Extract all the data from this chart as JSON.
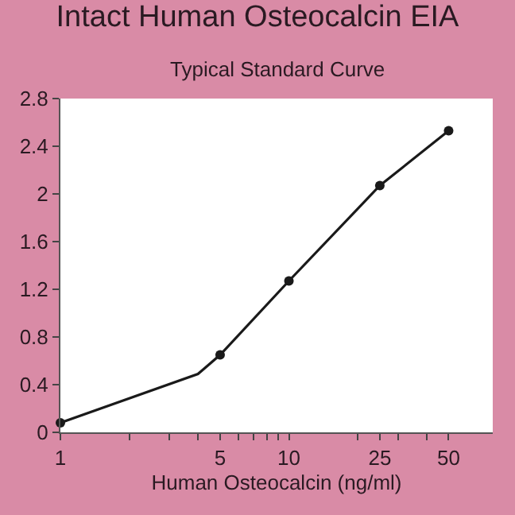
{
  "chart_data": {
    "type": "line",
    "title": "Intact Human Osteocalcin EIA",
    "subtitle": "Typical Standard Curve",
    "xlabel": "Human Osteocalcin (ng/ml)",
    "log": "x",
    "xlim": [
      1,
      78
    ],
    "xticks": [
      1,
      {
        "value": 2,
        "label": null
      },
      {
        "value": 3,
        "label": null
      },
      {
        "value": 4,
        "label": null
      },
      5,
      {
        "value": 6,
        "label": null
      },
      {
        "value": 7,
        "label": null
      },
      {
        "value": 8,
        "label": null
      },
      {
        "value": 9,
        "label": null
      },
      10,
      {
        "value": 20,
        "label": null
      },
      25,
      {
        "value": 30,
        "label": null
      },
      {
        "value": 40,
        "label": null
      },
      50
    ],
    "ylim": [
      0,
      2.8
    ],
    "yticks": [
      0,
      0.4,
      0.8,
      1.2,
      1.6,
      2,
      2.4,
      2.8
    ],
    "series": [
      {
        "color": "#1a1a1a",
        "marker": "none",
        "x": [
          1,
          4,
          5,
          10,
          25,
          50
        ],
        "values": [
          0.08,
          0.49,
          0.65,
          1.27,
          2.07,
          2.53
        ]
      },
      {
        "type": "scatter",
        "color": "#1a1a1a",
        "marker": "circle",
        "x": [
          1,
          5,
          10,
          25,
          50
        ],
        "values": [
          0.08,
          0.65,
          1.27,
          2.07,
          2.53
        ]
      }
    ]
  }
}
